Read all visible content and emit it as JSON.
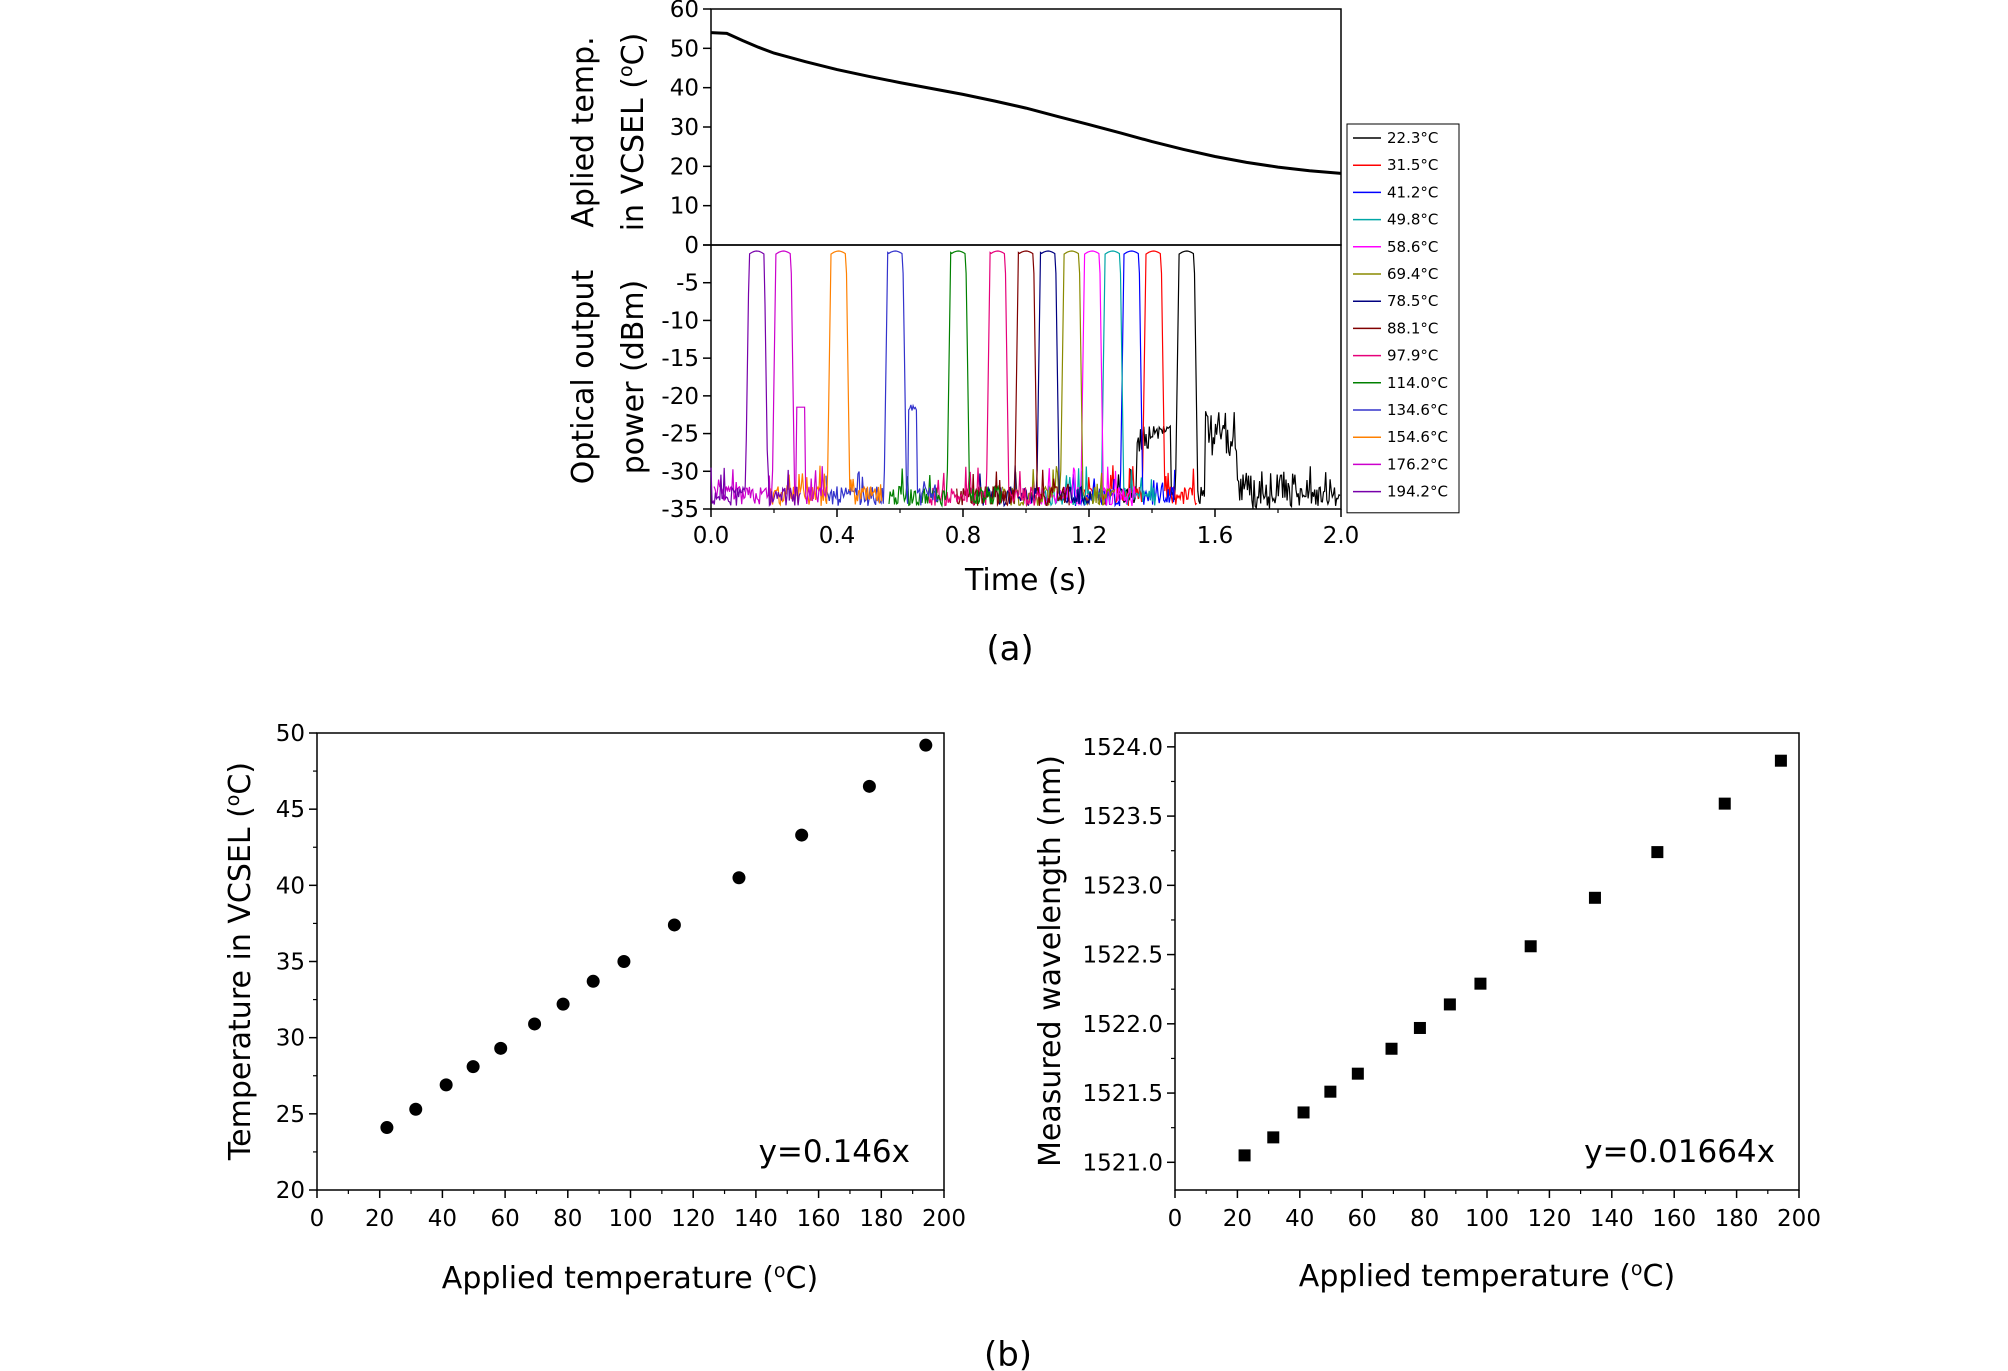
{
  "panel_labels": {
    "a": "(a)",
    "b": "(b)"
  },
  "chart_data": [
    {
      "id": "a-top",
      "type": "line",
      "ylabel_line1": "Aplied temp.",
      "ylabel_line2": "in VCSEL (",
      "ylabel_unit": "C)",
      "degree_symbol": "o",
      "xlim": [
        0,
        2.0
      ],
      "ylim": [
        0,
        60
      ],
      "yticks": [
        "0",
        "10",
        "20",
        "30",
        "40",
        "50",
        "60"
      ],
      "series": [
        {
          "color": "#000000",
          "points": [
            [
              0.0,
              54.0
            ],
            [
              0.05,
              53.8
            ],
            [
              0.1,
              52.0
            ],
            [
              0.15,
              50.3
            ],
            [
              0.2,
              48.8
            ],
            [
              0.3,
              46.6
            ],
            [
              0.4,
              44.6
            ],
            [
              0.5,
              42.9
            ],
            [
              0.6,
              41.3
            ],
            [
              0.7,
              39.8
            ],
            [
              0.8,
              38.3
            ],
            [
              0.9,
              36.6
            ],
            [
              1.0,
              34.8
            ],
            [
              1.1,
              32.7
            ],
            [
              1.2,
              30.6
            ],
            [
              1.3,
              28.5
            ],
            [
              1.4,
              26.3
            ],
            [
              1.5,
              24.3
            ],
            [
              1.6,
              22.5
            ],
            [
              1.7,
              21.0
            ],
            [
              1.8,
              19.8
            ],
            [
              1.9,
              18.9
            ],
            [
              2.0,
              18.2
            ]
          ]
        }
      ]
    },
    {
      "id": "a-bottom",
      "type": "line",
      "xlabel": "Time (s)",
      "ylabel_line1": "Optical output",
      "ylabel_line2": "power (dBm)",
      "xlim": [
        0,
        2.0
      ],
      "ylim": [
        -35,
        0
      ],
      "xticks": [
        "0.0",
        "0.4",
        "0.8",
        "1.2",
        "1.6",
        "2.0"
      ],
      "yticks": [
        "-35",
        "-30",
        "-25",
        "-20",
        "-15",
        "-10",
        "-5",
        "0"
      ],
      "legend_position": "right",
      "series": [
        {
          "name": "22.3°C",
          "color": "#000000",
          "peak_center": 1.51
        },
        {
          "name": "31.5°C",
          "color": "#ff0000",
          "peak_center": 1.405
        },
        {
          "name": "41.2°C",
          "color": "#0000ff",
          "peak_center": 1.335
        },
        {
          "name": "49.8°C",
          "color": "#00a6a6",
          "peak_center": 1.275
        },
        {
          "name": "58.6°C",
          "color": "#ff00ff",
          "peak_center": 1.21
        },
        {
          "name": "69.4°C",
          "color": "#8a8a00",
          "peak_center": 1.145
        },
        {
          "name": "78.5°C",
          "color": "#000080",
          "peak_center": 1.07
        },
        {
          "name": "88.1°C",
          "color": "#800000",
          "peak_center": 1.0
        },
        {
          "name": "97.9°C",
          "color": "#e6007a",
          "peak_center": 0.91
        },
        {
          "name": "114.0°C",
          "color": "#008000",
          "peak_center": 0.785
        },
        {
          "name": "134.6°C",
          "color": "#3333cc",
          "peak_center": 0.585
        },
        {
          "name": "154.6°C",
          "color": "#ff8000",
          "peak_center": 0.405
        },
        {
          "name": "176.2°C",
          "color": "#cc00cc",
          "peak_center": 0.23
        },
        {
          "name": "194.2°C",
          "color": "#7700aa",
          "peak_center": 0.145
        }
      ]
    },
    {
      "id": "b-left",
      "type": "scatter",
      "marker": "circle",
      "xlabel": "Applied temperature (",
      "xlabel_unit": "C)",
      "ylabel": "Temperature in VCSEL (",
      "ylabel_unit": "C)",
      "degree_symbol": "o",
      "annotation": "y=0.146x",
      "xlim": [
        0,
        200
      ],
      "ylim": [
        20,
        50
      ],
      "xticks": [
        "0",
        "20",
        "40",
        "60",
        "80",
        "100",
        "120",
        "140",
        "160",
        "180",
        "200"
      ],
      "yticks": [
        "20",
        "25",
        "30",
        "35",
        "40",
        "45",
        "50"
      ],
      "x": [
        22.3,
        31.5,
        41.2,
        49.8,
        58.6,
        69.4,
        78.5,
        88.1,
        97.9,
        114.0,
        134.6,
        154.6,
        176.2,
        194.2
      ],
      "y": [
        24.1,
        25.3,
        26.9,
        28.1,
        29.3,
        30.9,
        32.2,
        33.7,
        35.0,
        37.4,
        40.5,
        43.3,
        46.5,
        49.2
      ]
    },
    {
      "id": "b-right",
      "type": "scatter",
      "marker": "square",
      "xlabel": "Applied temperature (",
      "xlabel_unit": "C)",
      "ylabel": "Measured wavelength (nm)",
      "degree_symbol": "o",
      "annotation": "y=0.01664x",
      "xlim": [
        0,
        200
      ],
      "ylim": [
        1520.8,
        1524.1
      ],
      "xticks": [
        "0",
        "20",
        "40",
        "60",
        "80",
        "100",
        "120",
        "140",
        "160",
        "180",
        "200"
      ],
      "yticks": [
        "1521.0",
        "1521.5",
        "1522.0",
        "1522.5",
        "1523.0",
        "1523.5",
        "1524.0"
      ],
      "x": [
        22.3,
        31.5,
        41.2,
        49.8,
        58.6,
        69.4,
        78.5,
        88.1,
        97.9,
        114.0,
        134.6,
        154.6,
        176.2,
        194.2
      ],
      "y": [
        1521.05,
        1521.18,
        1521.36,
        1521.51,
        1521.64,
        1521.82,
        1521.97,
        1522.14,
        1522.29,
        1522.56,
        1522.91,
        1523.24,
        1523.59,
        1523.9
      ]
    }
  ]
}
